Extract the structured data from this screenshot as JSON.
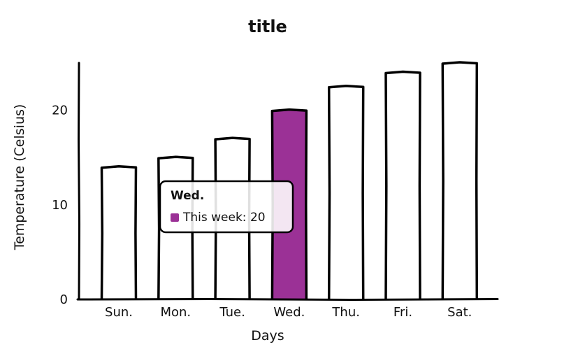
{
  "chart_data": {
    "type": "bar",
    "title": "title",
    "xlabel": "Days",
    "ylabel": "Temperature (Celsius)",
    "categories": [
      "Sun.",
      "Mon.",
      "Tue.",
      "Wed.",
      "Thu.",
      "Fri.",
      "Sat."
    ],
    "series": [
      {
        "name": "This week",
        "values": [
          14,
          15,
          17,
          20,
          22.5,
          24,
          25
        ]
      }
    ],
    "ylim": [
      0,
      25
    ],
    "yticks": [
      0,
      10,
      20
    ],
    "grid": false,
    "highlight_color": "#9b3196",
    "bar_fill": "#ffffff",
    "stroke_color": "#000000"
  },
  "tooltip": {
    "title": "Wed.",
    "label": "This week: 20",
    "category_index": 3
  }
}
